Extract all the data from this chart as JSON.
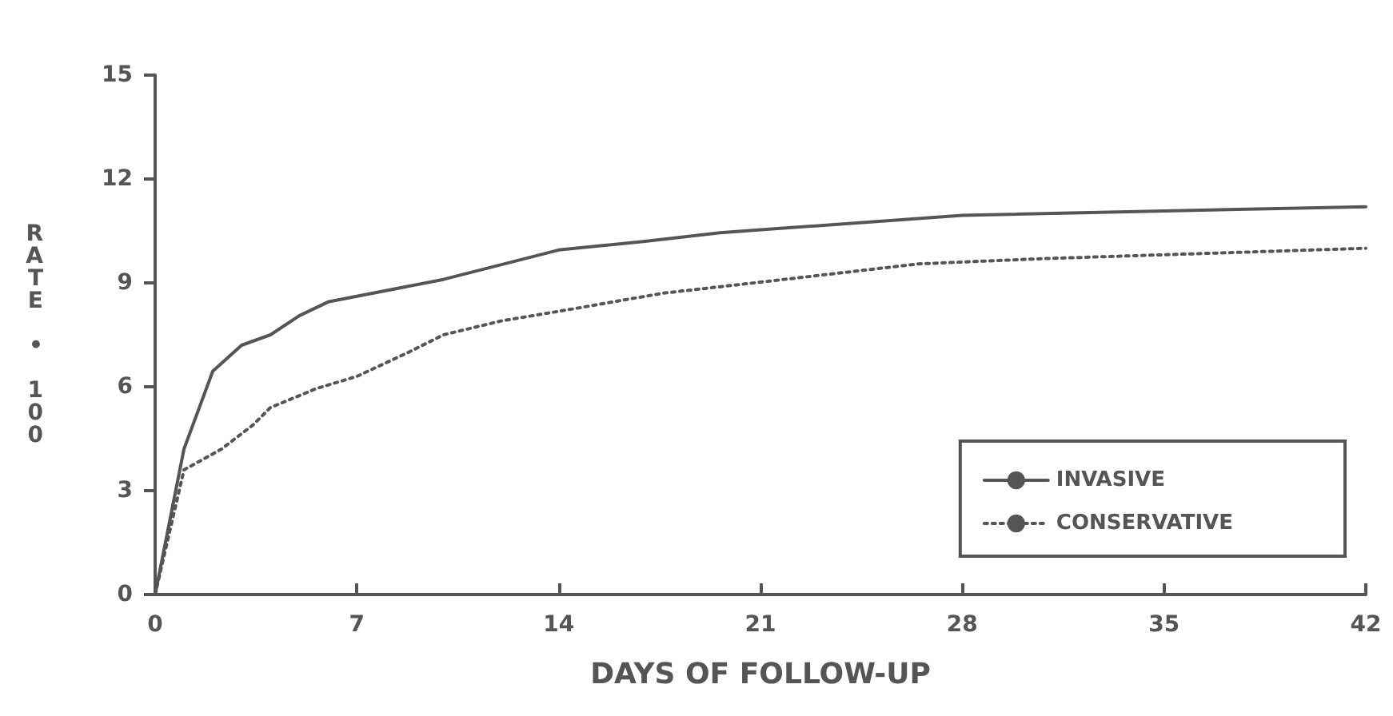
{
  "chart_data": {
    "type": "line",
    "xlabel": "DAYS OF FOLLOW-UP",
    "ylabel": "RATE • 100",
    "xlim": [
      0,
      42
    ],
    "xticks": [
      0,
      7,
      14,
      21,
      28,
      35,
      42
    ],
    "ylim": [
      0,
      15
    ],
    "yticks": [
      0,
      3,
      6,
      9,
      12,
      15
    ],
    "grid": false,
    "legend": "bottom right",
    "marker": "none",
    "series": [
      {
        "name": "INVASIVE",
        "color": "#555555",
        "line_style": "solid",
        "x": [
          0,
          1,
          2,
          3,
          4,
          5,
          6,
          10,
          14,
          17,
          19.6,
          21.3,
          28,
          42
        ],
        "values": [
          0,
          4.2,
          6.45,
          7.2,
          7.5,
          8.05,
          8.45,
          9.1,
          9.95,
          10.2,
          10.45,
          10.55,
          10.95,
          11.2
        ]
      },
      {
        "name": "CONSERVATIVE",
        "color": "#555555",
        "line_style": "dotted",
        "x": [
          0,
          1,
          2.3,
          3.4,
          4,
          5.6,
          7,
          8.8,
          10,
          12,
          14.5,
          17.6,
          21.3,
          26.5,
          30.8,
          36.4,
          42
        ],
        "values": [
          0,
          3.6,
          4.2,
          4.9,
          5.4,
          5.95,
          6.3,
          7,
          7.5,
          7.9,
          8.25,
          8.7,
          9.05,
          9.55,
          9.7,
          9.85,
          10
        ]
      }
    ]
  }
}
